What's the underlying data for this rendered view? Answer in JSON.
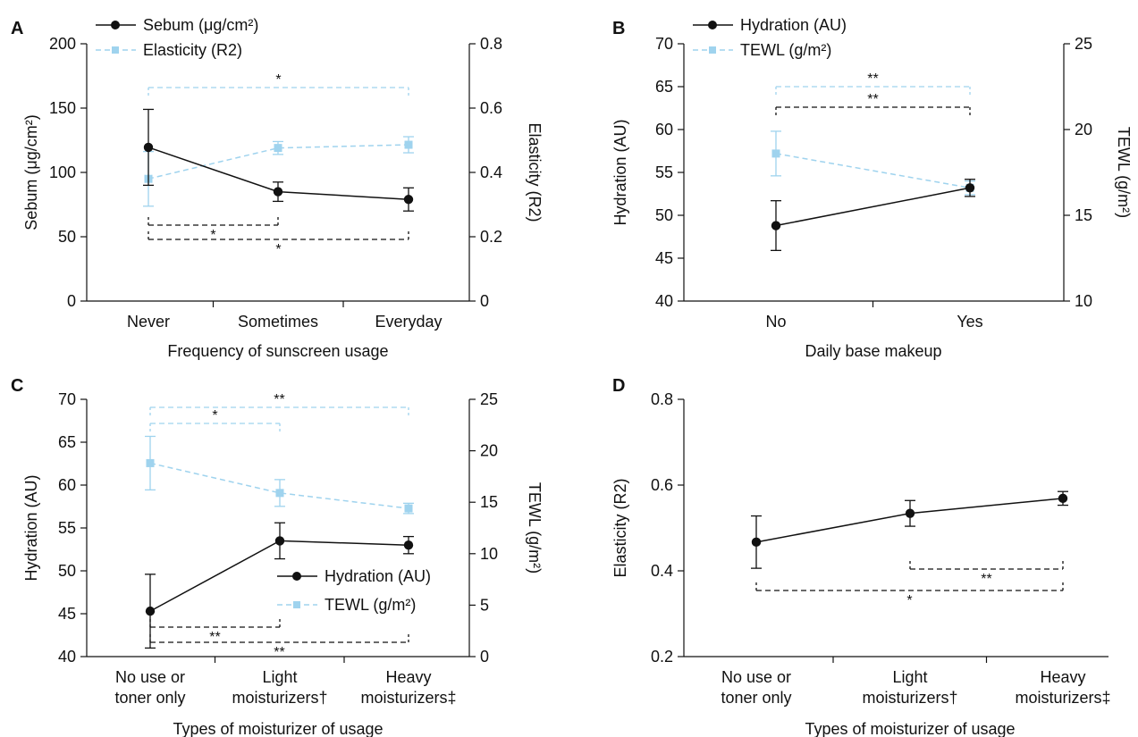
{
  "colors": {
    "primary": "#111111",
    "secondary": "#9fd3ee"
  },
  "chart_data": [
    {
      "panel": "A",
      "type": "line",
      "categories": [
        "Never",
        "Sometimes",
        "Everyday"
      ],
      "xlabel": "Frequency of sunscreen usage",
      "ylabel_left": "Sebum (μg/cm²)",
      "ylabel_right": "Elasticity (R2)",
      "ylim_left": [
        0,
        200
      ],
      "yticks_left": [
        "0",
        "50",
        "100",
        "150",
        "200"
      ],
      "ylim_right": [
        0,
        0.8
      ],
      "yticks_right": [
        "0",
        "0.2",
        "0.4",
        "0.6",
        "0.8"
      ],
      "legend_position": "top-left",
      "series": [
        {
          "name": "Sebum (μg/cm²)",
          "axis": "left",
          "style": "solid",
          "marker": "circle",
          "values": [
            119.5,
            85,
            79
          ],
          "err": [
            29.5,
            7.5,
            9
          ]
        },
        {
          "name": "Elasticity (R2)",
          "axis": "right",
          "style": "dashed",
          "marker": "square",
          "values": [
            0.38,
            0.476,
            0.486
          ],
          "err": [
            0.085,
            0.02,
            0.025
          ]
        }
      ],
      "significance": [
        {
          "from": 0,
          "to": 2,
          "series": "Elasticity (R2)",
          "label": "*",
          "side": "above"
        },
        {
          "from": 0,
          "to": 1,
          "series": "Sebum (μg/cm²)",
          "label": "*",
          "side": "below"
        },
        {
          "from": 0,
          "to": 2,
          "series": "Sebum (μg/cm²)",
          "label": "*",
          "side": "below"
        }
      ]
    },
    {
      "panel": "B",
      "type": "line",
      "categories": [
        "No",
        "Yes"
      ],
      "xlabel": "Daily base makeup",
      "ylabel_left": "Hydration (AU)",
      "ylabel_right": "TEWL (g/m²)",
      "ylim_left": [
        40,
        70
      ],
      "yticks_left": [
        "40",
        "45",
        "50",
        "55",
        "60",
        "65",
        "70"
      ],
      "ylim_right": [
        10,
        25
      ],
      "yticks_right": [
        "10",
        "15",
        "20",
        "25"
      ],
      "legend_position": "top-left",
      "series": [
        {
          "name": "Hydration (AU)",
          "axis": "left",
          "style": "solid",
          "marker": "circle",
          "values": [
            48.8,
            53.2
          ],
          "err": [
            2.9,
            1.0
          ]
        },
        {
          "name": "TEWL (g/m²)",
          "axis": "right",
          "style": "dashed",
          "marker": "square",
          "values": [
            18.6,
            16.6
          ],
          "err": [
            1.3,
            0.4
          ]
        }
      ],
      "significance": [
        {
          "from": 0,
          "to": 1,
          "series": "TEWL (g/m²)",
          "label": "**",
          "side": "above"
        },
        {
          "from": 0,
          "to": 1,
          "series": "Hydration (AU)",
          "label": "**",
          "side": "above"
        }
      ]
    },
    {
      "panel": "C",
      "type": "line",
      "categories": [
        "No use or toner only",
        "Light moisturizers†",
        "Heavy moisturizers‡"
      ],
      "category_lines": [
        [
          "No use or",
          "toner only"
        ],
        [
          "Light",
          "moisturizers†"
        ],
        [
          "Heavy",
          "moisturizers‡"
        ]
      ],
      "xlabel": "Types of moisturizer of usage",
      "ylabel_left": "Hydration (AU)",
      "ylabel_right": "TEWL (g/m²)",
      "ylim_left": [
        40,
        70
      ],
      "yticks_left": [
        "40",
        "45",
        "50",
        "55",
        "60",
        "65",
        "70"
      ],
      "ylim_right": [
        0,
        25
      ],
      "yticks_right": [
        "0",
        "5",
        "10",
        "15",
        "20",
        "25"
      ],
      "legend_position": "center-right",
      "series": [
        {
          "name": "Hydration (AU)",
          "axis": "left",
          "style": "solid",
          "marker": "circle",
          "values": [
            45.3,
            53.5,
            53.0
          ],
          "err": [
            4.3,
            2.1,
            1.0
          ]
        },
        {
          "name": "TEWL (g/m²)",
          "axis": "right",
          "style": "dashed",
          "marker": "square",
          "values": [
            18.8,
            15.9,
            14.4
          ],
          "err": [
            2.6,
            1.3,
            0.5
          ]
        }
      ],
      "significance": [
        {
          "from": 0,
          "to": 2,
          "series": "TEWL (g/m²)",
          "label": "**",
          "side": "above"
        },
        {
          "from": 0,
          "to": 1,
          "series": "TEWL (g/m²)",
          "label": "*",
          "side": "above"
        },
        {
          "from": 0,
          "to": 1,
          "series": "Hydration (AU)",
          "label": "**",
          "side": "below"
        },
        {
          "from": 0,
          "to": 2,
          "series": "Hydration (AU)",
          "label": "**",
          "side": "below"
        }
      ]
    },
    {
      "panel": "D",
      "type": "line",
      "categories": [
        "No use or toner only",
        "Light moisturizers†",
        "Heavy moisturizers‡"
      ],
      "category_lines": [
        [
          "No use or",
          "toner only"
        ],
        [
          "Light",
          "moisturizers†"
        ],
        [
          "Heavy",
          "moisturizers‡"
        ]
      ],
      "xlabel": "Types of moisturizer of usage",
      "ylabel_left": "Elasticity (R2)",
      "ylim_left": [
        0.2,
        0.8
      ],
      "yticks_left": [
        "0.2",
        "0.4",
        "0.6",
        "0.8"
      ],
      "series": [
        {
          "name": "Elasticity (R2)",
          "axis": "left",
          "style": "solid",
          "marker": "circle",
          "values": [
            0.467,
            0.534,
            0.569
          ],
          "err": [
            0.061,
            0.03,
            0.016
          ]
        }
      ],
      "significance": [
        {
          "from": 1,
          "to": 2,
          "series": "Elasticity (R2)",
          "label": "**",
          "side": "below"
        },
        {
          "from": 0,
          "to": 2,
          "series": "Elasticity (R2)",
          "label": "*",
          "side": "below"
        }
      ]
    }
  ]
}
